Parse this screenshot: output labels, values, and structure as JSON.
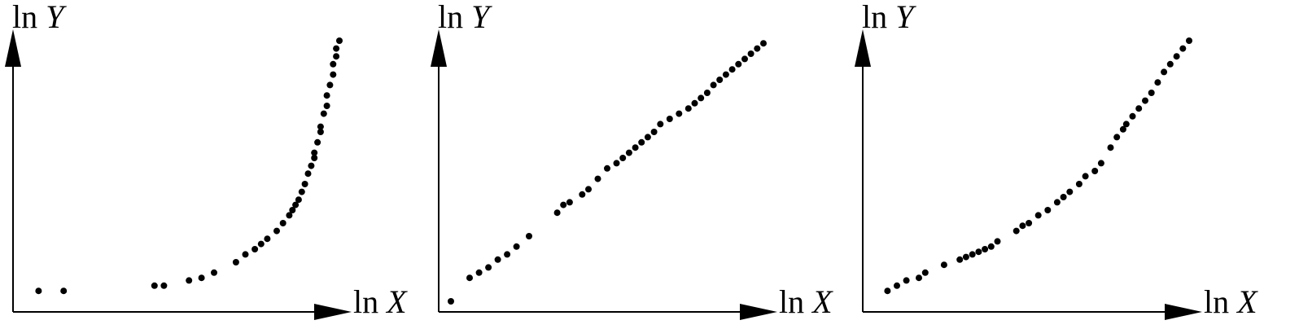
{
  "chart_data": [
    {
      "type": "scatter",
      "xlabel": "ln X",
      "ylabel": "ln Y",
      "xlabel_parts": {
        "fn": "ln",
        "var": "X"
      },
      "ylabel_parts": {
        "fn": "ln",
        "var": "Y"
      },
      "xlim": [
        0,
        100
      ],
      "ylim": [
        0,
        100
      ],
      "grid": false,
      "points_color": "#000000",
      "x": [
        4,
        12,
        41,
        44,
        52,
        56,
        60,
        67,
        70,
        73,
        75,
        77,
        80,
        82,
        84,
        85,
        86,
        87,
        88,
        89,
        90,
        91,
        92,
        92,
        93,
        94,
        94,
        95,
        96,
        96,
        97,
        98,
        98,
        99,
        99,
        100
      ],
      "y": [
        4,
        4,
        6,
        6,
        8,
        9,
        11,
        15,
        18,
        20,
        22,
        24,
        27,
        30,
        33,
        35,
        37,
        39,
        42,
        45,
        49,
        52,
        55,
        57,
        61,
        65,
        67,
        72,
        75,
        79,
        83,
        87,
        91,
        94,
        97,
        100
      ]
    },
    {
      "type": "scatter",
      "xlabel": "ln X",
      "ylabel": "ln Y",
      "xlabel_parts": {
        "fn": "ln",
        "var": "X"
      },
      "ylabel_parts": {
        "fn": "ln",
        "var": "Y"
      },
      "xlim": [
        0,
        100
      ],
      "ylim": [
        0,
        100
      ],
      "grid": false,
      "points_color": "#000000",
      "x": [
        0,
        6,
        9,
        12,
        15,
        18,
        21,
        25,
        34,
        36,
        38,
        42,
        44,
        47,
        50,
        53,
        55,
        57,
        59,
        61,
        63,
        65,
        67,
        70,
        73,
        76,
        78,
        80,
        82,
        84,
        86,
        88,
        90,
        92,
        94,
        96,
        98,
        100
      ],
      "y": [
        0,
        9,
        11,
        13,
        16,
        18,
        21,
        25,
        34,
        37,
        38,
        41,
        43,
        47,
        51,
        53,
        55,
        57,
        59,
        61,
        63,
        65,
        68,
        70,
        72,
        74,
        76,
        78,
        80,
        83,
        85,
        87,
        89,
        91,
        93,
        95,
        97,
        99
      ]
    },
    {
      "type": "scatter",
      "xlabel": "ln X",
      "ylabel": "ln Y",
      "xlabel_parts": {
        "fn": "ln",
        "var": "X"
      },
      "ylabel_parts": {
        "fn": "ln",
        "var": "Y"
      },
      "xlim": [
        0,
        100
      ],
      "ylim": [
        0,
        100
      ],
      "grid": false,
      "points_color": "#000000",
      "x": [
        4,
        7,
        10,
        14,
        16,
        22,
        27,
        29,
        31,
        33,
        35,
        37,
        39,
        45,
        47,
        49,
        52,
        55,
        58,
        60,
        62,
        65,
        67,
        70,
        72,
        75,
        77,
        79,
        80,
        82,
        84,
        86,
        88,
        90,
        92,
        94,
        96,
        98,
        100
      ],
      "y": [
        4,
        6,
        8,
        9,
        11,
        14,
        16,
        17,
        18,
        19,
        20,
        21,
        23,
        27,
        29,
        30,
        33,
        35,
        38,
        40,
        42,
        45,
        48,
        50,
        53,
        59,
        63,
        66,
        68,
        71,
        74,
        77,
        80,
        84,
        88,
        91,
        94,
        97,
        100
      ]
    }
  ]
}
